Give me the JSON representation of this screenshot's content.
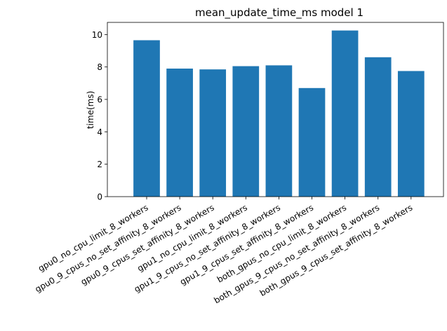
{
  "chart_data": {
    "type": "bar",
    "title": "mean_update_time_ms model 1",
    "xlabel": "",
    "ylabel": "time(ms)",
    "ylim": [
      0,
      10.75
    ],
    "yticks": [
      0,
      2,
      4,
      6,
      8,
      10
    ],
    "ytick_labels": [
      "0",
      "2",
      "4",
      "6",
      "8",
      "10"
    ],
    "categories": [
      "gpu0_no_cpu_limit_8_workers",
      "gpu0_9_cpus_no_set_affinity_8_workers",
      "gpu0_9_cpus_set_affinity_8_workers",
      "gpu1_no_cpu_limit_8_workers",
      "gpu1_9_cpus_no_set_affinity_8_workers",
      "gpu1_9_cpus_set_affinity_8_workers",
      "both_gpus_no_cpu_limit_8_workers",
      "both_gpus_9_cpus_no_set_affinity_8_workers",
      "both_gpus_9_cpus_set_affinity_8_workers"
    ],
    "values": [
      9.65,
      7.9,
      7.85,
      8.05,
      8.1,
      6.7,
      10.25,
      8.6,
      7.75
    ],
    "bar_color": "#1f77b4",
    "grid": false,
    "legend": "none"
  }
}
